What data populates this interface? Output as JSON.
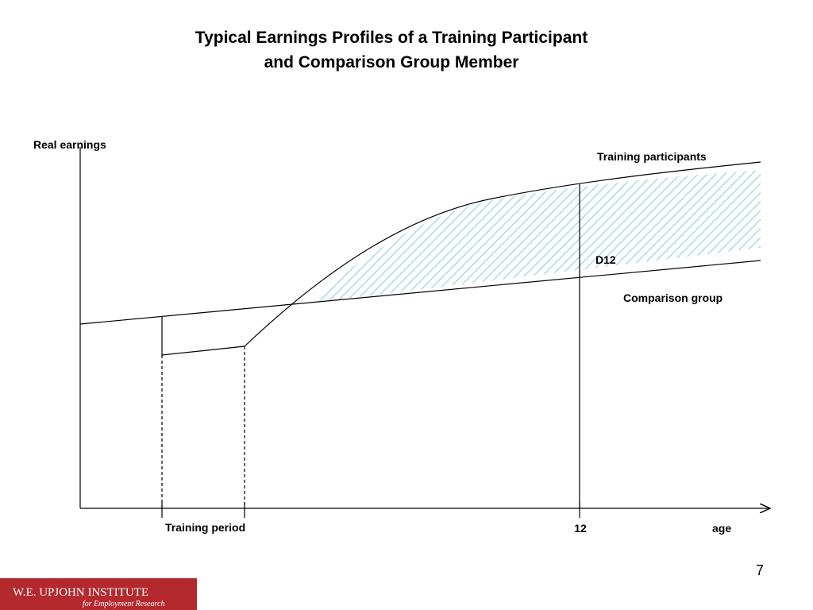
{
  "header": {
    "title_line1": "Typical Earnings Profiles of a Training Participant",
    "title_line2": "and Comparison Group Member"
  },
  "diagram": {
    "y_axis_label": "Real earnings",
    "x_axis_label": "age",
    "participants_label": "Training participants",
    "comparison_label": "Comparison group",
    "difference_label": "D12",
    "training_period_label": "Training period",
    "time_mark_label": "12"
  },
  "footer": {
    "page_number": "7",
    "logo_main": "W.E. UPJOHN INSTITUTE",
    "logo_sub": "for Employment Research"
  }
}
